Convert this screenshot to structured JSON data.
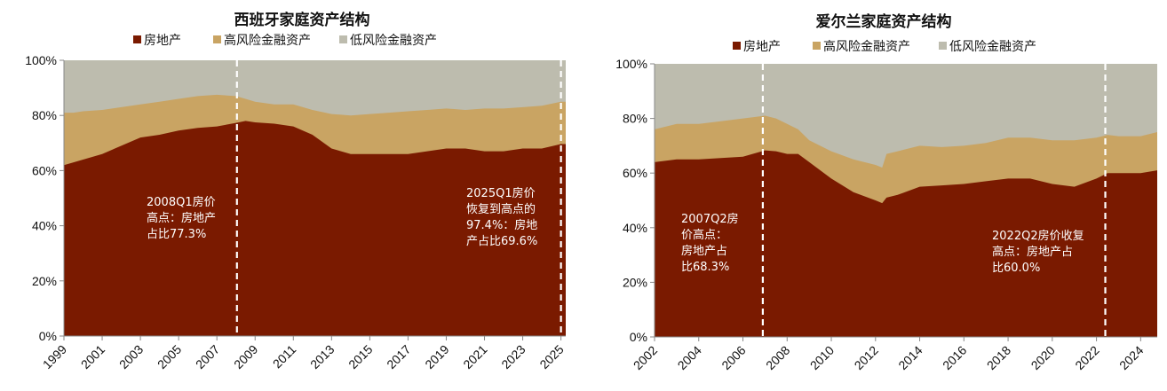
{
  "chart_data": [
    {
      "type": "area",
      "stacked": true,
      "title": "西班牙家庭资产结构",
      "legend_position": "top",
      "ylim": [
        0,
        100
      ],
      "yticks": [
        "0%",
        "20%",
        "40%",
        "60%",
        "80%",
        "100%"
      ],
      "xlim": [
        1999,
        2025.25
      ],
      "xticks": [
        "1999",
        "2001",
        "2003",
        "2005",
        "2007",
        "2009",
        "2011",
        "2013",
        "2015",
        "2017",
        "2019",
        "2021",
        "2023",
        "2025"
      ],
      "grid": false,
      "colors": [
        "#7a1a00",
        "#c9a463",
        "#bdbcae"
      ],
      "series": [
        {
          "name": "房地产",
          "color": "#7a1a00",
          "x": [
            1999,
            1999.5,
            2000,
            2001,
            2002,
            2003,
            2004,
            2005,
            2006,
            2007,
            2008,
            2008.5,
            2009,
            2010,
            2011,
            2012,
            2013,
            2014,
            2015,
            2016,
            2017,
            2018,
            2019,
            2020,
            2021,
            2022,
            2023,
            2024,
            2025,
            2025.25
          ],
          "values": [
            62,
            63,
            64,
            66,
            69,
            72,
            73,
            74.5,
            75.5,
            76,
            77.3,
            78,
            77.5,
            77,
            76,
            73,
            68,
            66,
            66,
            66,
            66,
            67,
            68,
            68,
            67,
            67,
            68,
            68,
            69.6,
            69.6
          ]
        },
        {
          "name": "高风险金融资产",
          "color": "#c9a463",
          "x": [
            1999,
            1999.5,
            2000,
            2001,
            2002,
            2003,
            2004,
            2005,
            2006,
            2007,
            2008,
            2008.5,
            2009,
            2010,
            2011,
            2012,
            2013,
            2014,
            2015,
            2016,
            2017,
            2018,
            2019,
            2020,
            2021,
            2022,
            2023,
            2024,
            2025,
            2025.25
          ],
          "values": [
            81,
            81,
            81.5,
            82,
            83,
            84,
            85,
            86,
            87,
            87.5,
            87,
            86,
            85,
            84,
            84,
            82,
            80.5,
            80,
            80.5,
            81,
            81.5,
            82,
            82.5,
            82,
            82.5,
            82.5,
            83,
            83.5,
            85,
            85
          ]
        },
        {
          "name": "低风险金融资产",
          "color": "#bdbcae",
          "x": [
            1999,
            2025.25
          ],
          "values": [
            100,
            100
          ]
        }
      ],
      "vlines": [
        {
          "x": 2008.05,
          "label": "2008Q1房价高点：房地产占比77.3%"
        },
        {
          "x": 2025.0,
          "label": "2025Q1房价恢复到高点的97.4%：房地产占比69.6%"
        }
      ],
      "annotations": [
        {
          "lines": [
            "2008Q1房价",
            "高点：房地产",
            "占比77.3%"
          ]
        },
        {
          "lines": [
            "2025Q1房价",
            "恢复到高点的",
            "97.4%：房地",
            "产占比69.6%"
          ]
        }
      ]
    },
    {
      "type": "area",
      "stacked": true,
      "title": "爱尔兰家庭资产结构",
      "legend_position": "top",
      "ylim": [
        0,
        100
      ],
      "yticks": [
        "0%",
        "20%",
        "40%",
        "60%",
        "80%",
        "100%"
      ],
      "xlim": [
        2002,
        2024.75
      ],
      "xticks": [
        "2002",
        "2004",
        "2006",
        "2008",
        "2010",
        "2012",
        "2014",
        "2016",
        "2018",
        "2020",
        "2022",
        "2024"
      ],
      "grid": false,
      "colors": [
        "#7a1a00",
        "#c9a463",
        "#bdbcae"
      ],
      "series": [
        {
          "name": "房地产",
          "color": "#7a1a00",
          "x": [
            2002,
            2003,
            2004,
            2005,
            2006,
            2007,
            2007.5,
            2008,
            2008.5,
            2009,
            2010,
            2011,
            2012,
            2012.3,
            2012.5,
            2013,
            2014,
            2015,
            2016,
            2017,
            2018,
            2019,
            2020,
            2021,
            2022,
            2022.5,
            2023,
            2024,
            2024.75
          ],
          "values": [
            64,
            65,
            65,
            65.5,
            66,
            68.3,
            68,
            67,
            67,
            64,
            58,
            53,
            50,
            49,
            51,
            52,
            55,
            55.5,
            56,
            57,
            58,
            58,
            56,
            55,
            58,
            60,
            60,
            60,
            61
          ]
        },
        {
          "name": "高风险金融资产",
          "color": "#c9a463",
          "x": [
            2002,
            2003,
            2004,
            2005,
            2006,
            2007,
            2007.5,
            2008,
            2008.5,
            2009,
            2010,
            2011,
            2012,
            2012.3,
            2012.5,
            2013,
            2014,
            2015,
            2016,
            2017,
            2018,
            2019,
            2020,
            2021,
            2022,
            2022.5,
            2023,
            2024,
            2024.75
          ],
          "values": [
            76,
            78,
            78,
            79,
            80,
            81,
            80,
            78,
            76,
            72,
            68,
            65,
            63,
            62,
            67,
            68,
            70,
            69.5,
            70,
            71,
            73,
            73,
            72,
            72,
            73,
            74,
            73.5,
            73.5,
            75
          ]
        },
        {
          "name": "低风险金融资产",
          "color": "#bdbcae",
          "x": [
            2002,
            2024.75
          ],
          "values": [
            100,
            100
          ]
        }
      ],
      "vlines": [
        {
          "x": 2006.9,
          "label": "2007Q2房价高点：房地产占比68.3%"
        },
        {
          "x": 2022.4,
          "label": "2022Q2房价收复高点：房地产占比60.0%"
        }
      ],
      "annotations": [
        {
          "lines": [
            "2007Q2房",
            "价高点：",
            "房地产占",
            "比68.3%"
          ]
        },
        {
          "lines": [
            "2022Q2房价收复",
            "高点：房地产占",
            "比60.0%"
          ]
        }
      ]
    }
  ]
}
